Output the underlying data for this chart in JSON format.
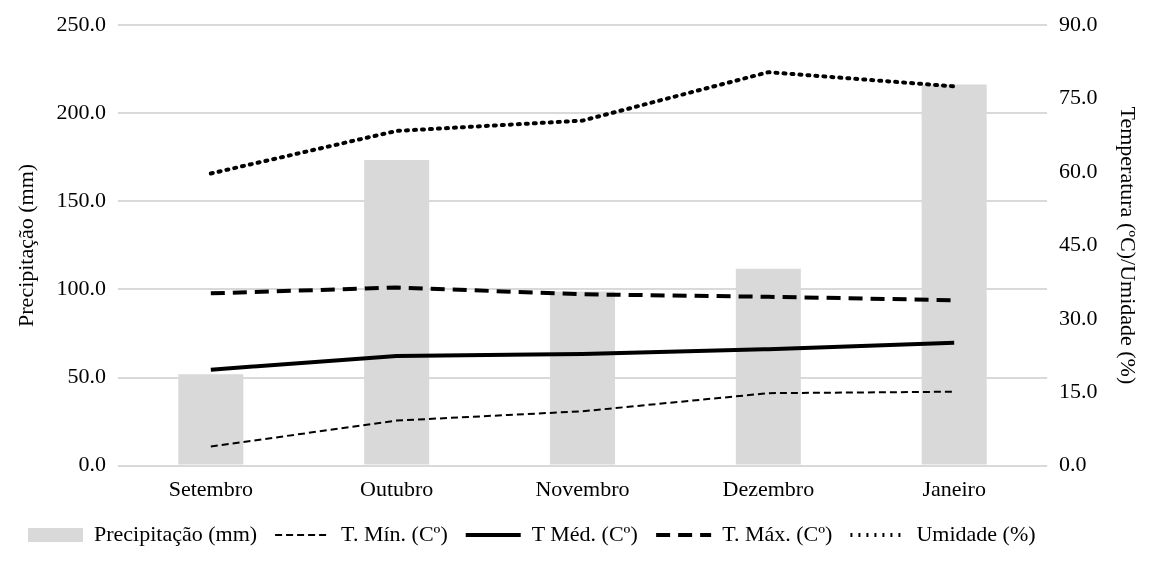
{
  "chart_data": {
    "type": "bar",
    "ylabel": "Precipitação (mm)",
    "y2label": "Temperatura (ºC)/Umidade (%)",
    "categories": [
      "Setembro",
      "Outubro",
      "Novembro",
      "Dezembro",
      "Janeiro"
    ],
    "series": [
      {
        "name": "Precipitação (mm)",
        "color": "#d9d9d9",
        "values": [
          51.8,
          173.5,
          98.8,
          111.7,
          216.3
        ]
      },
      {
        "name": "T. Mín. (Cº)",
        "type": "line",
        "axis": "y2",
        "color": "#000000",
        "line_style": "dashed",
        "values": [
          3.9,
          9.2,
          11.1,
          14.8,
          15.1
        ]
      },
      {
        "name": "T Méd. (Cº)",
        "type": "line",
        "axis": "y2",
        "color": "#000000",
        "line_style": "solid",
        "values": [
          19.6,
          22.4,
          22.8,
          23.8,
          25.1
        ]
      },
      {
        "name": "T. Máx. (Cº)",
        "type": "line",
        "axis": "y2",
        "color": "#000000",
        "line_style": "dashed",
        "values": [
          35.2,
          36.4,
          35.0,
          34.5,
          33.8
        ]
      },
      {
        "name": "Umidade (%)",
        "type": "line",
        "axis": "y2",
        "color": "#000000",
        "line_style": "dotted",
        "values": [
          59.7,
          68.4,
          70.5,
          80.4,
          77.5
        ]
      }
    ],
    "ylim": [
      0,
      250
    ],
    "yticks": [
      {
        "value": 0,
        "label": "0.0"
      },
      {
        "value": 50,
        "label": "50.0"
      },
      {
        "value": 100,
        "label": "100.0"
      },
      {
        "value": 150,
        "label": "150.0"
      },
      {
        "value": 200,
        "label": "200.0"
      },
      {
        "value": 250,
        "label": "250.0"
      }
    ],
    "y2lim": [
      0,
      90
    ],
    "y2ticks": [
      {
        "value": 0,
        "label": "0.0"
      },
      {
        "value": 15,
        "label": "15.0"
      },
      {
        "value": 30,
        "label": "30.0"
      },
      {
        "value": 45,
        "label": "45.0"
      },
      {
        "value": 60,
        "label": "60.0"
      },
      {
        "value": 75,
        "label": "75.0"
      },
      {
        "value": 90,
        "label": "90.0"
      }
    ],
    "grid": "y",
    "legend": "bottom",
    "marker": "none"
  }
}
